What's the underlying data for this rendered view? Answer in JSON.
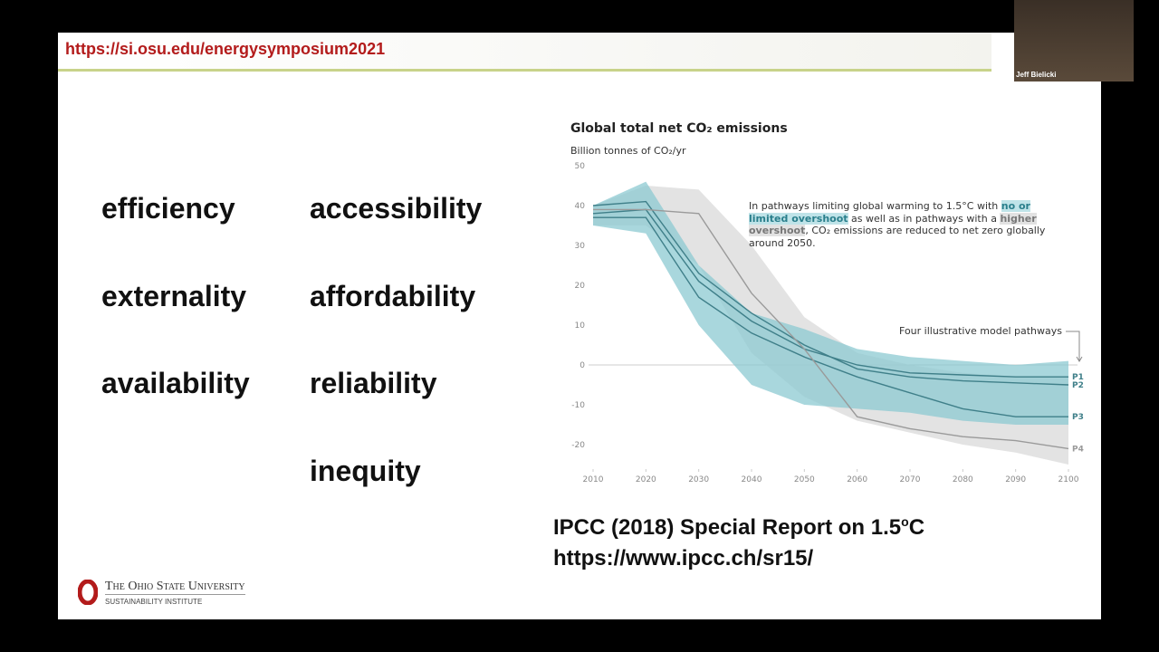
{
  "slide": {
    "url": "https://si.osu.edu/energysymposium2021",
    "words": [
      "efficiency",
      "accessibility",
      "externality",
      "affordability",
      "availability",
      "reliability",
      "inequity"
    ],
    "citation": {
      "line1": "IPCC (2018) Special Report on 1.5",
      "sup": "o",
      "unit": "C",
      "line2": "https://www.ipcc.ch/sr15/"
    },
    "logo": {
      "name": "The Ohio State University",
      "unit": "Sustainability Institute"
    }
  },
  "video": {
    "participant": "Jeff Bielicki"
  },
  "chart_data": {
    "type": "line",
    "title": "Global total net CO₂ emissions",
    "subtitle": "Billion tonnes of CO₂/yr",
    "annotation": [
      "In pathways limiting global warming to 1.5°C with ",
      "no or limited overshoot",
      " as well as in pathways with a ",
      "higher overshoot",
      ", CO₂ emissions are reduced to net zero globally around 2050."
    ],
    "pathways_label": "Four illustrative model pathways",
    "x": [
      2010,
      2020,
      2030,
      2040,
      2050,
      2060,
      2070,
      2080,
      2090,
      2100
    ],
    "xlim": [
      2010,
      2100
    ],
    "xticks": [
      2010,
      2020,
      2030,
      2040,
      2050,
      2060,
      2070,
      2080,
      2090,
      2100
    ],
    "ylim": [
      -20,
      50
    ],
    "yticks": [
      -20,
      -10,
      0,
      10,
      20,
      30,
      40,
      50
    ],
    "bands": [
      {
        "color": "#d9d9d9",
        "low": [
          35,
          35,
          25,
          3,
          -8,
          -14,
          -17,
          -20,
          -22,
          -25
        ],
        "high": [
          40,
          45,
          44,
          30,
          12,
          3,
          0,
          -2,
          -3,
          -3
        ]
      },
      {
        "color": "#8cc9d2",
        "low": [
          35,
          33,
          10,
          -5,
          -10,
          -11,
          -12,
          -14,
          -15,
          -15
        ],
        "high": [
          40,
          46,
          25,
          13,
          9,
          4,
          2,
          1,
          0,
          1
        ]
      }
    ],
    "series": [
      {
        "name": "P1",
        "color": "#3f7f89",
        "values": [
          38,
          39,
          21,
          11,
          4,
          0,
          -2,
          -2.5,
          -3,
          -3
        ]
      },
      {
        "name": "P2",
        "color": "#3f7f89",
        "values": [
          40,
          41,
          23,
          13,
          5,
          -1,
          -3,
          -4,
          -4.5,
          -5
        ]
      },
      {
        "name": "P3",
        "color": "#3f7f89",
        "values": [
          37,
          37,
          17,
          8,
          2,
          -3,
          -7,
          -11,
          -13,
          -13
        ]
      },
      {
        "name": "P4",
        "color": "#9a9a9a",
        "values": [
          39,
          39,
          38,
          18,
          4,
          -13,
          -16,
          -18,
          -19,
          -21
        ]
      }
    ]
  }
}
